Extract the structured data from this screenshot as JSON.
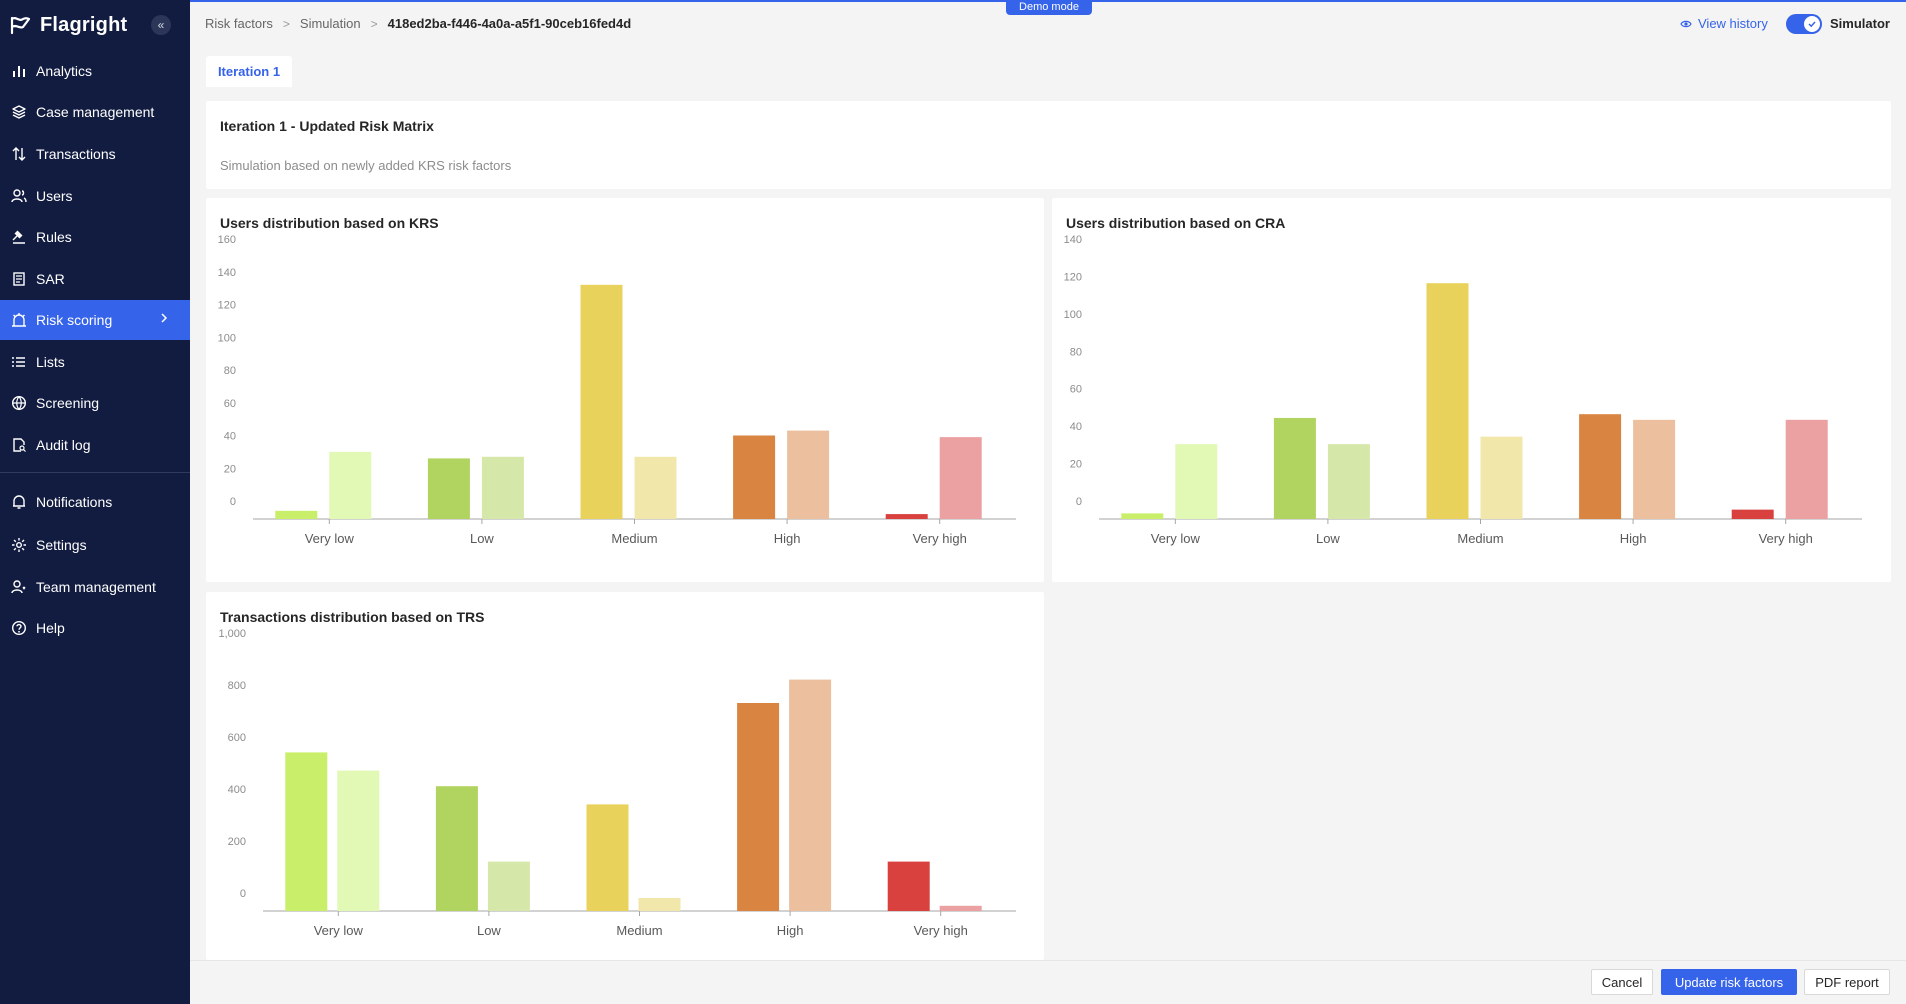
{
  "brand": {
    "name": "Flagright"
  },
  "sidebar": {
    "items": [
      {
        "label": "Analytics",
        "icon": "bar-chart-icon"
      },
      {
        "label": "Case management",
        "icon": "layers-icon"
      },
      {
        "label": "Transactions",
        "icon": "arrows-updown-icon"
      },
      {
        "label": "Users",
        "icon": "users-icon"
      },
      {
        "label": "Rules",
        "icon": "gavel-icon"
      },
      {
        "label": "SAR",
        "icon": "document-icon"
      },
      {
        "label": "Risk scoring",
        "icon": "alarm-icon",
        "active": true
      },
      {
        "label": "Lists",
        "icon": "list-icon"
      },
      {
        "label": "Screening",
        "icon": "globe-icon"
      },
      {
        "label": "Audit log",
        "icon": "file-search-icon"
      }
    ],
    "bottom_items": [
      {
        "label": "Notifications",
        "icon": "bell-icon"
      },
      {
        "label": "Settings",
        "icon": "gear-icon"
      },
      {
        "label": "Team management",
        "icon": "team-icon"
      },
      {
        "label": "Help",
        "icon": "help-icon"
      }
    ]
  },
  "banner": {
    "demo_mode": "Demo mode"
  },
  "breadcrumb": {
    "items": [
      "Risk factors",
      "Simulation"
    ],
    "current": "418ed2ba-f446-4a0a-a5f1-90ceb16fed4d"
  },
  "header": {
    "view_history": "View history",
    "simulator_label": "Simulator",
    "simulator_on": true
  },
  "tabs": [
    {
      "label": "Iteration 1",
      "active": true
    }
  ],
  "summary": {
    "title": "Iteration 1 - Updated Risk Matrix",
    "subtitle": "Simulation based on newly added KRS risk factors"
  },
  "colors": {
    "accent": "#3563e9",
    "sidebar_bg": "#121c40",
    "risk_levels": {
      "Very low": [
        "#c9ef6a",
        "#e2f8b5"
      ],
      "Low": [
        "#b1d35f",
        "#d5e8a9"
      ],
      "Medium": [
        "#e8d25c",
        "#f2e7ab"
      ],
      "High": [
        "#d98441",
        "#ecc09e"
      ],
      "Very high": [
        "#d9413f",
        "#eba0a1"
      ]
    }
  },
  "chart_data": [
    {
      "type": "bar",
      "title": "Users distribution based on KRS",
      "categories": [
        "Very low",
        "Low",
        "Medium",
        "High",
        "Very high"
      ],
      "series": [
        {
          "values": [
            5,
            37,
            143,
            51,
            3
          ]
        },
        {
          "values": [
            41,
            38,
            38,
            54,
            50
          ]
        }
      ],
      "yticks": [
        0,
        20,
        40,
        60,
        80,
        100,
        120,
        140,
        160
      ],
      "ylim": [
        0,
        160
      ],
      "grid": false
    },
    {
      "type": "bar",
      "title": "Users distribution based on CRA",
      "categories": [
        "Very low",
        "Low",
        "Medium",
        "High",
        "Very high"
      ],
      "series": [
        {
          "values": [
            3,
            54,
            126,
            56,
            5
          ]
        },
        {
          "values": [
            40,
            40,
            44,
            53,
            53
          ]
        }
      ],
      "yticks": [
        0,
        20,
        40,
        60,
        80,
        100,
        120,
        140
      ],
      "ylim": [
        0,
        140
      ],
      "grid": false
    },
    {
      "type": "bar",
      "title": "Transactions distribution based on TRS",
      "categories": [
        "Very low",
        "Low",
        "Medium",
        "High",
        "Very high"
      ],
      "series": [
        {
          "values": [
            610,
            480,
            410,
            800,
            190
          ]
        },
        {
          "values": [
            540,
            190,
            50,
            890,
            20
          ]
        }
      ],
      "yticks": [
        0,
        200,
        400,
        600,
        800,
        1000
      ],
      "ytick_labels": [
        "0",
        "200",
        "400",
        "600",
        "800",
        "1,000"
      ],
      "ylim": [
        0,
        1000
      ],
      "grid": false
    }
  ],
  "footer": {
    "cancel": "Cancel",
    "update": "Update risk factors",
    "pdf": "PDF report"
  }
}
